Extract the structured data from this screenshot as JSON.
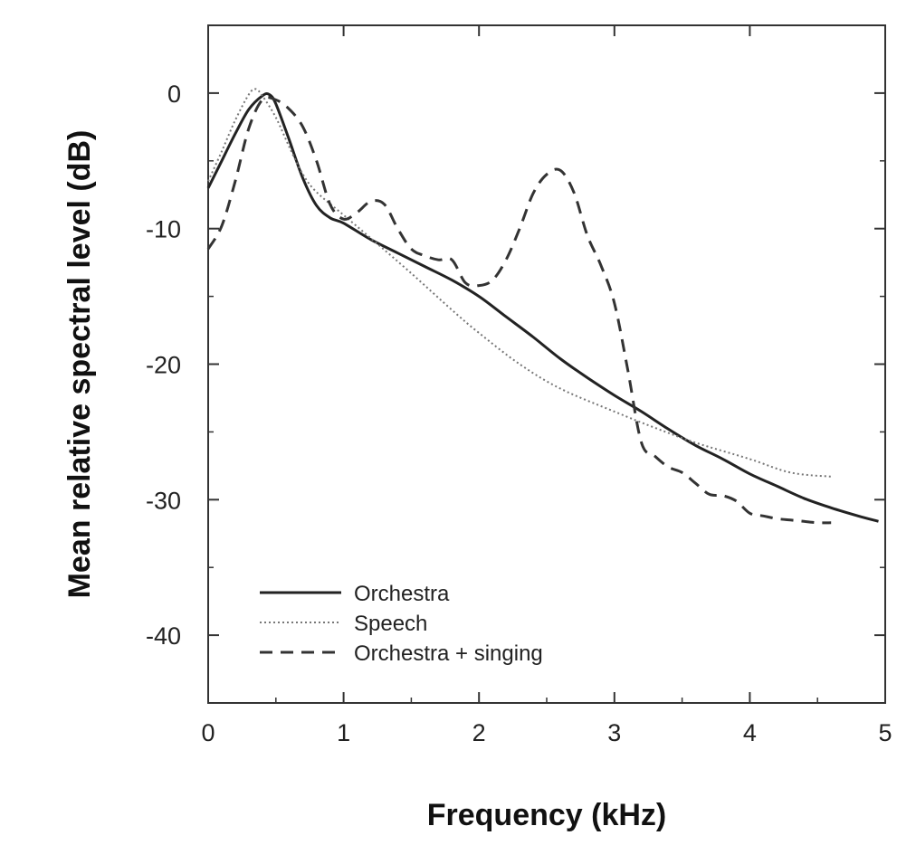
{
  "chart_data": {
    "type": "line",
    "title": "",
    "xlabel": "Frequency (kHz)",
    "ylabel": "Mean relative spectral level (dB)",
    "xlim": [
      0,
      5
    ],
    "ylim": [
      -45,
      5
    ],
    "x_ticks": [
      0,
      1,
      2,
      3,
      4,
      5
    ],
    "x_tick_labels": [
      "0",
      "1",
      "2",
      "3",
      "4",
      "5"
    ],
    "y_ticks": [
      0,
      -10,
      -20,
      -30,
      -40
    ],
    "y_tick_labels": [
      "0",
      "-10",
      "-20",
      "-30",
      "-40"
    ],
    "grid": false,
    "legend_position": "bottom-left",
    "series": [
      {
        "name": "Orchestra",
        "style": "solid",
        "x": [
          0,
          0.1,
          0.2,
          0.3,
          0.4,
          0.45,
          0.5,
          0.6,
          0.7,
          0.8,
          0.9,
          1.0,
          1.2,
          1.4,
          1.6,
          1.8,
          2.0,
          2.2,
          2.4,
          2.6,
          2.8,
          3.0,
          3.2,
          3.4,
          3.6,
          3.8,
          4.0,
          4.2,
          4.4,
          4.6,
          4.8,
          4.95
        ],
        "y": [
          -7,
          -5,
          -3,
          -1.2,
          -0.2,
          -0.1,
          -0.8,
          -3.5,
          -6.3,
          -8.3,
          -9.2,
          -9.6,
          -10.8,
          -11.8,
          -12.8,
          -13.8,
          -15.0,
          -16.5,
          -18.0,
          -19.6,
          -21.0,
          -22.3,
          -23.5,
          -24.8,
          -26.0,
          -27.0,
          -28.1,
          -29.0,
          -29.9,
          -30.6,
          -31.2,
          -31.6
        ]
      },
      {
        "name": "Speech",
        "style": "dotted",
        "x": [
          0,
          0.1,
          0.2,
          0.3,
          0.35,
          0.4,
          0.5,
          0.6,
          0.7,
          0.8,
          1.0,
          1.2,
          1.5,
          1.8,
          2.0,
          2.3,
          2.6,
          3.0,
          3.3,
          3.6,
          4.0,
          4.3,
          4.6
        ],
        "y": [
          -6.5,
          -4.3,
          -2,
          -0.1,
          0.3,
          -0.2,
          -1.8,
          -4.0,
          -6.0,
          -7.3,
          -9.0,
          -10.7,
          -13.3,
          -16.0,
          -17.7,
          -20.0,
          -21.8,
          -23.5,
          -24.7,
          -25.8,
          -27.0,
          -28.0,
          -28.3
        ]
      },
      {
        "name": "Orchestra + singing",
        "style": "dashed",
        "x": [
          0,
          0.1,
          0.2,
          0.3,
          0.4,
          0.5,
          0.6,
          0.7,
          0.8,
          0.9,
          1.0,
          1.1,
          1.2,
          1.3,
          1.4,
          1.5,
          1.6,
          1.7,
          1.8,
          1.9,
          2.0,
          2.1,
          2.2,
          2.3,
          2.4,
          2.5,
          2.6,
          2.7,
          2.8,
          2.9,
          3.0,
          3.1,
          3.2,
          3.3,
          3.4,
          3.5,
          3.6,
          3.7,
          3.8,
          3.9,
          4.0,
          4.1,
          4.2,
          4.3,
          4.4,
          4.5,
          4.6
        ],
        "y": [
          -11.5,
          -9.8,
          -6.5,
          -2.6,
          -0.5,
          -0.5,
          -1.2,
          -2.5,
          -5.0,
          -8.2,
          -9.3,
          -8.8,
          -8.0,
          -8.2,
          -10.0,
          -11.5,
          -12.0,
          -12.3,
          -12.3,
          -14.0,
          -14.2,
          -13.8,
          -12.3,
          -10.0,
          -7.4,
          -6.0,
          -5.7,
          -7.3,
          -10.5,
          -12.7,
          -15.5,
          -20.5,
          -25.8,
          -26.8,
          -27.6,
          -28.0,
          -28.8,
          -29.6,
          -29.7,
          -30.1,
          -31.0,
          -31.2,
          -31.4,
          -31.5,
          -31.6,
          -31.7,
          -31.7
        ]
      }
    ]
  }
}
